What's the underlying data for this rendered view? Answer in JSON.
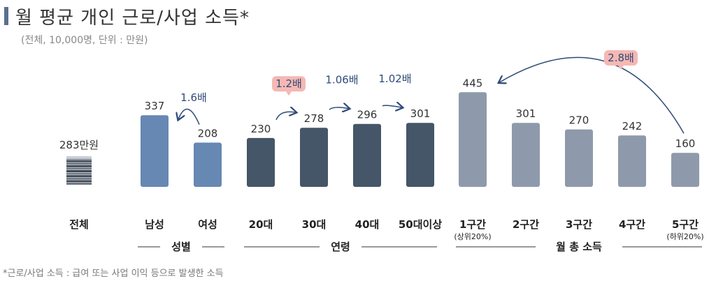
{
  "header": {
    "title": "월 평균 개인 근로/사업 소득*",
    "subtitle": "(전체, 10,000명, 단위 : 만원)"
  },
  "footnote": "*근로/사업 소득 : 급여 또는 사업 이익 등으로 발생한 소득",
  "chart_data": {
    "type": "bar",
    "total": {
      "label": "전체",
      "value_label": "283만원",
      "icon": "money-stack-icon"
    },
    "categories": [
      "남성",
      "여성",
      "20대",
      "30대",
      "40대",
      "50대이상",
      "1구간",
      "2구간",
      "3구간",
      "4구간",
      "5구간"
    ],
    "category_notes": [
      "",
      "",
      "",
      "",
      "",
      "",
      "(상위20%)",
      "",
      "",
      "",
      "(하위20%)"
    ],
    "values": [
      337,
      208,
      230,
      278,
      296,
      301,
      445,
      301,
      270,
      242,
      160
    ],
    "bar_colors": [
      "#6688b3",
      "#6688b3",
      "#445667",
      "#445667",
      "#445667",
      "#445667",
      "#8e9aab",
      "#8e9aab",
      "#8e9aab",
      "#8e9aab",
      "#8e9aab"
    ],
    "groups": [
      {
        "label": "성별",
        "from": 0,
        "to": 1
      },
      {
        "label": "연령",
        "from": 2,
        "to": 5
      },
      {
        "label": "월 총 소득",
        "from": 6,
        "to": 10
      }
    ],
    "annotations": [
      {
        "text": "1.6배",
        "from": 1,
        "to": 0,
        "highlight": false
      },
      {
        "text": "1.2배",
        "from": 2,
        "to": 3,
        "highlight": true
      },
      {
        "text": "1.06배",
        "from": 3,
        "to": 4,
        "highlight": false
      },
      {
        "text": "1.02배",
        "from": 4,
        "to": 5,
        "highlight": false
      },
      {
        "text": "2.8배",
        "from": 10,
        "to": 6,
        "highlight": true
      }
    ],
    "colors": {
      "highlight_fill": "#f5b8b4",
      "annotation_text": "#2f4a78",
      "arrow": "#2f4a78",
      "axis_text": "#222"
    }
  }
}
